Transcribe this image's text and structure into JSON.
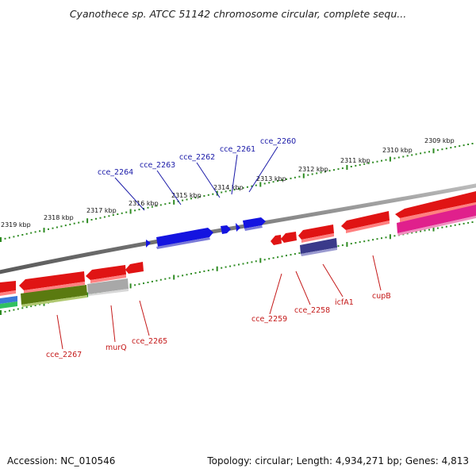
{
  "title": "Cyanothece sp. ATCC 51142 chromosome circular, complete sequ...",
  "footer": {
    "accession": "Accession: NC_010546",
    "stats": "Topology: circular; Length: 4,934,271 bp; Genes: 4,813"
  },
  "colors": {
    "backbone": "#8a8a8a",
    "tick": "#2e8b22",
    "forward_gene": "#1414e0",
    "reverse_gene": "#e01414",
    "blue_label": "#1a1aa8",
    "red_label": "#c41818"
  },
  "ruler_outer": [
    "2309 kbp",
    "2310 kbp",
    "2311 kbp",
    "2312 kbp",
    "2313 kbp",
    "2314 kbp",
    "2315 kbp",
    "2316 kbp",
    "2317 kbp",
    "2318 kbp",
    "2319 kbp"
  ],
  "forward_labels": [
    "cce_2260",
    "cce_2261",
    "cce_2262",
    "cce_2263",
    "cce_2264"
  ],
  "reverse_labels": [
    "cupB",
    "icfA1",
    "cce_2258",
    "cce_2259",
    "cce_2265",
    "murQ",
    "cce_2267"
  ]
}
